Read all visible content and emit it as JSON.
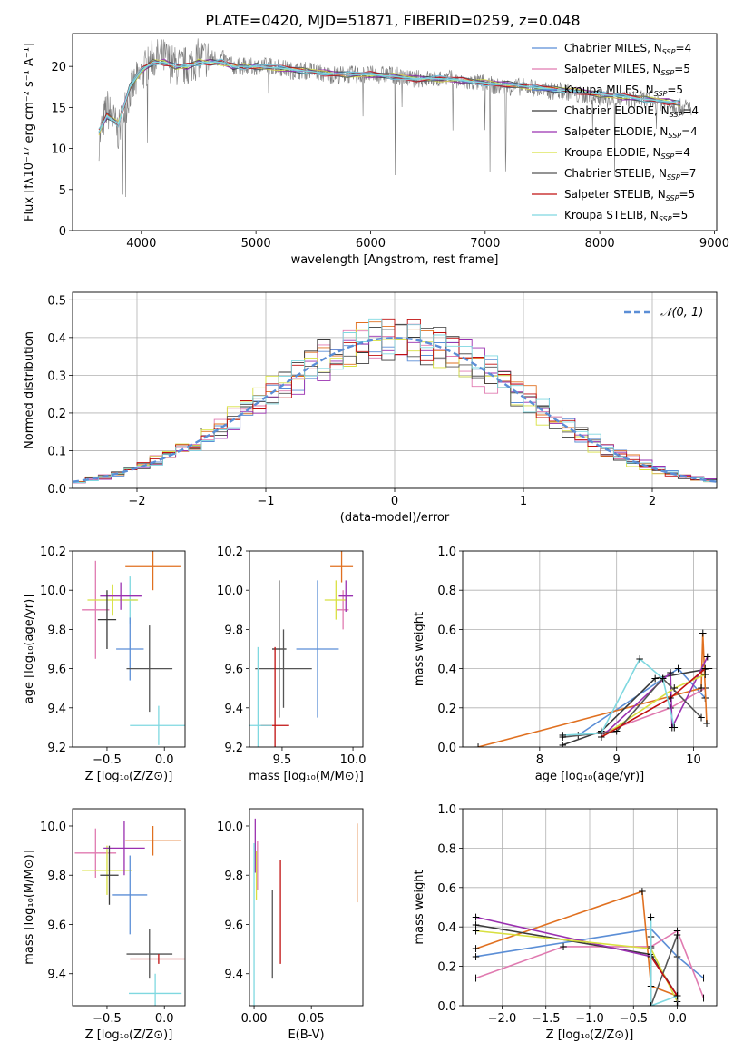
{
  "figure": {
    "title": "PLATE=0420, MJD=51871, FIBERID=0259, z=0.048"
  },
  "series_styles": [
    {
      "name": "Chabrier MILES",
      "color": "#5b8ed6"
    },
    {
      "name": "Salpeter MILES",
      "color": "#e07ab0"
    },
    {
      "name": "Kroupa MILES",
      "color": "#3f7fd0"
    },
    {
      "name": "Chabrier ELODIE",
      "color": "#3a3a3a"
    },
    {
      "name": "Salpeter ELODIE",
      "color": "#9a30b0"
    },
    {
      "name": "Kroupa ELODIE",
      "color": "#d8e040"
    },
    {
      "name": "Chabrier STELIB",
      "color": "#555555"
    },
    {
      "name": "Salpeter STELIB",
      "color": "#c01010"
    },
    {
      "name": "Kroupa STELIB",
      "color": "#7fd8e0"
    }
  ],
  "chart_data": [
    {
      "id": "spectrum",
      "type": "line",
      "xlabel": "wavelength [Angstrom, rest frame]",
      "ylabel": "Flux [fλ10⁻¹⁷ erg cm⁻² s⁻¹ A⁻¹]",
      "xlim": [
        3400,
        9020
      ],
      "ylim": [
        0,
        24
      ],
      "xticks": [
        4000,
        5000,
        6000,
        7000,
        8000,
        9000
      ],
      "yticks": [
        0,
        5,
        10,
        15,
        20
      ],
      "legend_position": "right",
      "legend": [
        {
          "label": "Chabrier MILES, N",
          "sub": "SSP",
          "tail": "=4",
          "color": "#5b8ed6"
        },
        {
          "label": "Salpeter MILES, N",
          "sub": "SSP",
          "tail": "=5",
          "color": "#e07ab0"
        },
        {
          "label": "Kroupa MILES, N",
          "sub": "SSP",
          "tail": "=5",
          "color": "#3f7fd0"
        },
        {
          "label": "Chabrier ELODIE, N",
          "sub": "SSP",
          "tail": "=4",
          "color": "#3a3a3a"
        },
        {
          "label": "Salpeter ELODIE, N",
          "sub": "SSP",
          "tail": "=4",
          "color": "#9a30b0"
        },
        {
          "label": "Kroupa ELODIE, N",
          "sub": "SSP",
          "tail": "=4",
          "color": "#d8e040"
        },
        {
          "label": "Chabrier STELIB, N",
          "sub": "SSP",
          "tail": "=7",
          "color": "#555555"
        },
        {
          "label": "Salpeter STELIB, N",
          "sub": "SSP",
          "tail": "=5",
          "color": "#c01010"
        },
        {
          "label": "Kroupa STELIB, N",
          "sub": "SSP",
          "tail": "=5",
          "color": "#7fd8e0"
        }
      ],
      "data_x": [
        3630,
        3700,
        3800,
        3900,
        4000,
        4100,
        4200,
        4300,
        4400,
        4500,
        4600,
        4700,
        4800,
        4900,
        5000,
        5100,
        5200,
        5300,
        5400,
        5500,
        5600,
        5700,
        5800,
        5900,
        6000,
        6100,
        6200,
        6300,
        6400,
        6500,
        6600,
        6700,
        6800,
        6900,
        7000,
        7100,
        7200,
        7300,
        7400,
        7500,
        7600,
        7700,
        7800,
        7900,
        8000,
        8100,
        8200,
        8300,
        8400,
        8500,
        8600,
        8700,
        8800
      ],
      "data_y": [
        11,
        15,
        12,
        17,
        19,
        21,
        21,
        20,
        20,
        21,
        21,
        21,
        20,
        20,
        20,
        20,
        20,
        19.5,
        19.5,
        19.5,
        19,
        19,
        19,
        19,
        19,
        19,
        19,
        18.5,
        18.5,
        18.5,
        18.5,
        18.5,
        18,
        18,
        18,
        17.5,
        17.5,
        17.5,
        17.5,
        17,
        17,
        17,
        16.5,
        16.5,
        16,
        16,
        16,
        16,
        16,
        15.5,
        15.5,
        15,
        15
      ],
      "model_x": [
        3630,
        3700,
        3800,
        3900,
        4000,
        4100,
        4200,
        4300,
        4400,
        4500,
        4600,
        4700,
        4800,
        4900,
        5000,
        5200,
        5400,
        5600,
        5800,
        6000,
        6200,
        6400,
        6600,
        6800,
        7000,
        7200,
        7400,
        7600,
        7800,
        8000,
        8200,
        8400,
        8600,
        8700
      ],
      "model_y": [
        12,
        14,
        13,
        17.5,
        19.5,
        20.5,
        20.5,
        20,
        20,
        20.5,
        20.5,
        20.5,
        20,
        20,
        20,
        19.8,
        19.5,
        19.2,
        19,
        19,
        18.8,
        18.5,
        18.5,
        18.3,
        18,
        17.8,
        17.5,
        17.2,
        17,
        16.6,
        16.3,
        16,
        15.7,
        15.5
      ]
    },
    {
      "id": "residuals",
      "type": "bar",
      "xlabel": "(data-model)/error",
      "ylabel": "Normed distribution",
      "xlim": [
        -2.5,
        2.5
      ],
      "ylim": [
        0,
        0.52
      ],
      "xticks": [
        -2,
        -1,
        0,
        1,
        2
      ],
      "yticks": [
        0.0,
        0.1,
        0.2,
        0.3,
        0.4,
        0.5
      ],
      "legend": [
        {
          "label": "𝒩(0, 1)",
          "color": "#5b8ed6",
          "style": "dashed"
        }
      ],
      "bin_width": 0.1,
      "histogram_series": [
        {
          "name": "Chabrier MILES",
          "color": "#5b8ed6",
          "shift": 0.02
        },
        {
          "name": "Salpeter MILES",
          "color": "#e07ab0",
          "shift": -0.03
        },
        {
          "name": "Kroupa MILES",
          "color": "#e07020",
          "shift": 0.04
        },
        {
          "name": "Chabrier ELODIE",
          "color": "#3a3a3a",
          "shift": -0.02
        },
        {
          "name": "Salpeter ELODIE",
          "color": "#9a30b0",
          "shift": 0.05
        },
        {
          "name": "Kroupa ELODIE",
          "color": "#d8e040",
          "shift": -0.04
        },
        {
          "name": "Chabrier STELIB",
          "color": "#555555",
          "shift": 0.01
        },
        {
          "name": "Salpeter STELIB",
          "color": "#c01010",
          "shift": -0.01
        },
        {
          "name": "Kroupa STELIB",
          "color": "#7fd8e0",
          "shift": 0.03
        }
      ]
    },
    {
      "id": "age-vs-Z",
      "type": "scatter",
      "xlabel": "Z [log₁₀(Z/Z⊙)]",
      "ylabel": "age  [log₁₀(age/yr)]",
      "xlim": [
        -0.8,
        0.18
      ],
      "ylim": [
        9.2,
        10.2
      ],
      "xticks": [
        -0.5,
        0.0
      ],
      "xticklabels": [
        "−0.5",
        "0.0"
      ],
      "yticks": [
        9.2,
        9.4,
        9.6,
        9.8,
        10.0,
        10.2
      ],
      "points": [
        {
          "color": "#e07020",
          "x": -0.1,
          "xerr": 0.24,
          "y": 10.12,
          "yerr": 0.12
        },
        {
          "color": "#7fd8e0",
          "x": -0.3,
          "xerr": 0.06,
          "y": 9.95,
          "yerr": 0.12
        },
        {
          "color": "#e07ab0",
          "x": -0.6,
          "xerr": 0.12,
          "y": 9.9,
          "yerr": 0.25
        },
        {
          "color": "#d8e040",
          "x": -0.45,
          "xerr": 0.22,
          "y": 9.95,
          "yerr": 0.08
        },
        {
          "color": "#9a30b0",
          "x": -0.38,
          "xerr": 0.18,
          "y": 9.97,
          "yerr": 0.07
        },
        {
          "color": "#3a3a3a",
          "x": -0.5,
          "xerr": 0.08,
          "y": 9.85,
          "yerr": 0.15
        },
        {
          "color": "#5b8ed6",
          "x": -0.3,
          "xerr": 0.12,
          "y": 9.7,
          "yerr": 0.16
        },
        {
          "color": "#555555",
          "x": -0.13,
          "xerr": 0.2,
          "y": 9.6,
          "yerr": 0.22
        },
        {
          "color": "#7fd8e0",
          "x": -0.05,
          "xerr": 0.25,
          "y": 9.31,
          "yerr": 0.1
        }
      ]
    },
    {
      "id": "age-vs-mass",
      "type": "scatter",
      "xlabel": "mass [log₁₀(M/M⊙)]",
      "ylabel": "",
      "xlim": [
        9.27,
        10.07
      ],
      "ylim": [
        9.2,
        10.2
      ],
      "xticks": [
        9.5,
        10.0
      ],
      "xticklabels": [
        "9.5",
        "10.0"
      ],
      "yticks": [
        9.2,
        9.4,
        9.6,
        9.8,
        10.0,
        10.2
      ],
      "points": [
        {
          "color": "#e07020",
          "x": 9.92,
          "xerr": 0.08,
          "y": 10.12,
          "yerr": 0.08
        },
        {
          "color": "#e07ab0",
          "x": 9.93,
          "xerr": 0.04,
          "y": 9.9,
          "yerr": 0.1
        },
        {
          "color": "#d8e040",
          "x": 9.88,
          "xerr": 0.08,
          "y": 9.95,
          "yerr": 0.1
        },
        {
          "color": "#9a30b0",
          "x": 9.95,
          "xerr": 0.05,
          "y": 9.97,
          "yerr": 0.08
        },
        {
          "color": "#5b8ed6",
          "x": 9.75,
          "xerr": 0.15,
          "y": 9.7,
          "yerr": 0.35
        },
        {
          "color": "#3a3a3a",
          "x": 9.48,
          "xerr": 0.05,
          "y": 9.7,
          "yerr": 0.35
        },
        {
          "color": "#555555",
          "x": 9.51,
          "xerr": 0.2,
          "y": 9.6,
          "yerr": 0.2
        },
        {
          "color": "#c01010",
          "x": 9.45,
          "xerr": 0.1,
          "y": 9.31,
          "yerr": 0.4
        },
        {
          "color": "#7fd8e0",
          "x": 9.33,
          "xerr": 0.1,
          "y": 9.31,
          "yerr": 0.4
        }
      ]
    },
    {
      "id": "massweight-vs-age",
      "type": "line",
      "xlabel": "age  [log₁₀(age/yr)]",
      "ylabel": "mass weight",
      "xlim": [
        7.0,
        10.3
      ],
      "ylim": [
        0.0,
        1.0
      ],
      "xticks": [
        8,
        9,
        10
      ],
      "xticklabels": [
        "8",
        "9",
        "10"
      ],
      "yticks": [
        0.0,
        0.2,
        0.4,
        0.6,
        0.8,
        1.0
      ],
      "series": [
        {
          "name": "Chabrier MILES",
          "color": "#5b8ed6",
          "x": [
            8.5,
            9.8,
            10.15
          ],
          "y": [
            0.06,
            0.4,
            0.25
          ]
        },
        {
          "name": "Salpeter MILES",
          "color": "#e07ab0",
          "x": [
            8.8,
            9.7,
            10.15
          ],
          "y": [
            0.07,
            0.2,
            0.3
          ]
        },
        {
          "name": "Kroupa MILES",
          "color": "#e07020",
          "x": [
            7.2,
            10.1,
            10.12,
            10.17
          ],
          "y": [
            0.0,
            0.3,
            0.58,
            0.12
          ]
        },
        {
          "name": "Chabrier ELODIE",
          "color": "#3a3a3a",
          "x": [
            8.3,
            8.8,
            9.5,
            10.2
          ],
          "y": [
            0.01,
            0.08,
            0.35,
            0.4
          ]
        },
        {
          "name": "Salpeter ELODIE",
          "color": "#9a30b0",
          "x": [
            8.8,
            9.7,
            9.72,
            10.18
          ],
          "y": [
            0.05,
            0.38,
            0.1,
            0.46
          ]
        },
        {
          "name": "Kroupa ELODIE",
          "color": "#d8e040",
          "x": [
            8.8,
            9.75,
            10.15
          ],
          "y": [
            0.05,
            0.3,
            0.37
          ]
        },
        {
          "name": "Chabrier STELIB",
          "color": "#555555",
          "x": [
            8.3,
            9.0,
            9.6,
            10.1
          ],
          "y": [
            0.05,
            0.08,
            0.35,
            0.15
          ]
        },
        {
          "name": "Salpeter STELIB",
          "color": "#c01010",
          "x": [
            8.8,
            9.7,
            10.15
          ],
          "y": [
            0.05,
            0.25,
            0.4
          ]
        },
        {
          "name": "Kroupa STELIB",
          "color": "#7fd8e0",
          "x": [
            8.3,
            8.8,
            9.3,
            9.6,
            9.75
          ],
          "y": [
            0.06,
            0.07,
            0.45,
            0.35,
            0.1
          ]
        }
      ]
    },
    {
      "id": "mass-vs-Z",
      "type": "scatter",
      "xlabel": "Z [log₁₀(Z/Z⊙)]",
      "ylabel": "mass [log₁₀(M/M⊙)]",
      "xlim": [
        -0.8,
        0.18
      ],
      "ylim": [
        9.27,
        10.07
      ],
      "xticks": [
        -0.5,
        0.0
      ],
      "xticklabels": [
        "−0.5",
        "0.0"
      ],
      "yticks": [
        9.4,
        9.6,
        9.8,
        10.0
      ],
      "points": [
        {
          "color": "#e07020",
          "x": -0.1,
          "xerr": 0.24,
          "y": 9.94,
          "yerr": 0.06
        },
        {
          "color": "#e07ab0",
          "x": -0.6,
          "xerr": 0.18,
          "y": 9.89,
          "yerr": 0.1
        },
        {
          "color": "#d8e040",
          "x": -0.5,
          "xerr": 0.22,
          "y": 9.82,
          "yerr": 0.1
        },
        {
          "color": "#9a30b0",
          "x": -0.35,
          "xerr": 0.18,
          "y": 9.91,
          "yerr": 0.11
        },
        {
          "color": "#3a3a3a",
          "x": -0.48,
          "xerr": 0.08,
          "y": 9.8,
          "yerr": 0.12
        },
        {
          "color": "#5b8ed6",
          "x": -0.3,
          "xerr": 0.15,
          "y": 9.72,
          "yerr": 0.16
        },
        {
          "color": "#555555",
          "x": -0.13,
          "xerr": 0.2,
          "y": 9.48,
          "yerr": 0.1
        },
        {
          "color": "#c01010",
          "x": -0.05,
          "xerr": 0.25,
          "y": 9.46,
          "yerr": 0.02
        },
        {
          "color": "#7fd8e0",
          "x": -0.08,
          "xerr": 0.23,
          "y": 9.32,
          "yerr": 0.08
        }
      ]
    },
    {
      "id": "mass-vs-EBV",
      "type": "scatter",
      "xlabel": "E(B-V)",
      "ylabel": "",
      "xlim": [
        -0.004,
        0.095
      ],
      "ylim": [
        9.27,
        10.07
      ],
      "xticks": [
        0.0,
        0.05
      ],
      "xticklabels": [
        "0.00",
        "0.05"
      ],
      "yticks": [
        9.4,
        9.6,
        9.8,
        10.0
      ],
      "points": [
        {
          "color": "#e07020",
          "x": 0.09,
          "xerr": 0,
          "y": 9.85,
          "yerr": 0.16
        },
        {
          "color": "#9a30b0",
          "x": 0.001,
          "xerr": 0,
          "y": 9.92,
          "yerr": 0.11
        },
        {
          "color": "#e07ab0",
          "x": 0.003,
          "xerr": 0,
          "y": 9.84,
          "yerr": 0.1
        },
        {
          "color": "#d8e040",
          "x": 0.002,
          "xerr": 0,
          "y": 9.8,
          "yerr": 0.1
        },
        {
          "color": "#c01010",
          "x": 0.023,
          "xerr": 0,
          "y": 9.65,
          "yerr": 0.21
        },
        {
          "color": "#555555",
          "x": 0.016,
          "xerr": 0,
          "y": 9.56,
          "yerr": 0.18
        },
        {
          "color": "#7fd8e0",
          "x": 0.0,
          "xerr": 0,
          "y": 9.6,
          "yerr": 0.33
        }
      ]
    },
    {
      "id": "massweight-vs-Z",
      "type": "line",
      "xlabel": "Z [log₁₀(Z/Z⊙)]",
      "ylabel": "mass weight",
      "xlim": [
        -2.45,
        0.45
      ],
      "ylim": [
        0.0,
        1.0
      ],
      "xticks": [
        -2.0,
        -1.5,
        -1.0,
        -0.5,
        0.0
      ],
      "xticklabels": [
        "−2.0",
        "−1.5",
        "−1.0",
        "−0.5",
        "0.0"
      ],
      "yticks": [
        0.0,
        0.2,
        0.4,
        0.6,
        0.8,
        1.0
      ],
      "series": [
        {
          "name": "Chabrier MILES",
          "color": "#5b8ed6",
          "x": [
            -2.3,
            -0.3,
            0.0,
            0.3
          ],
          "y": [
            0.25,
            0.39,
            0.25,
            0.14
          ]
        },
        {
          "name": "Salpeter MILES",
          "color": "#e07ab0",
          "x": [
            -2.3,
            -1.3,
            -0.3,
            0.0,
            0.3
          ],
          "y": [
            0.14,
            0.3,
            0.3,
            0.38,
            0.04
          ]
        },
        {
          "name": "Kroupa MILES",
          "color": "#e07020",
          "x": [
            -2.3,
            -0.4,
            -0.3,
            0.0
          ],
          "y": [
            0.29,
            0.58,
            0.1,
            0.05
          ]
        },
        {
          "name": "Chabrier ELODIE",
          "color": "#3a3a3a",
          "x": [
            -2.3,
            -0.3,
            0.0
          ],
          "y": [
            0.41,
            0.26,
            0.05
          ]
        },
        {
          "name": "Salpeter ELODIE",
          "color": "#9a30b0",
          "x": [
            -2.3,
            -0.3,
            0.0
          ],
          "y": [
            0.45,
            0.25,
            0.05
          ]
        },
        {
          "name": "Kroupa ELODIE",
          "color": "#d8e040",
          "x": [
            -2.3,
            -0.3,
            0.0
          ],
          "y": [
            0.38,
            0.29,
            0.02
          ]
        },
        {
          "name": "Chabrier STELIB",
          "color": "#555555",
          "x": [
            -0.3,
            -0.3,
            0.0,
            0.0
          ],
          "y": [
            0.35,
            0.0,
            0.36,
            0.0
          ]
        },
        {
          "name": "Salpeter STELIB",
          "color": "#c01010",
          "x": [
            -0.3,
            0.0
          ],
          "y": [
            0.25,
            0.05
          ]
        },
        {
          "name": "Kroupa STELIB",
          "color": "#7fd8e0",
          "x": [
            -0.3,
            -0.3,
            0.0
          ],
          "y": [
            0.45,
            0.0,
            0.05
          ]
        }
      ]
    }
  ]
}
